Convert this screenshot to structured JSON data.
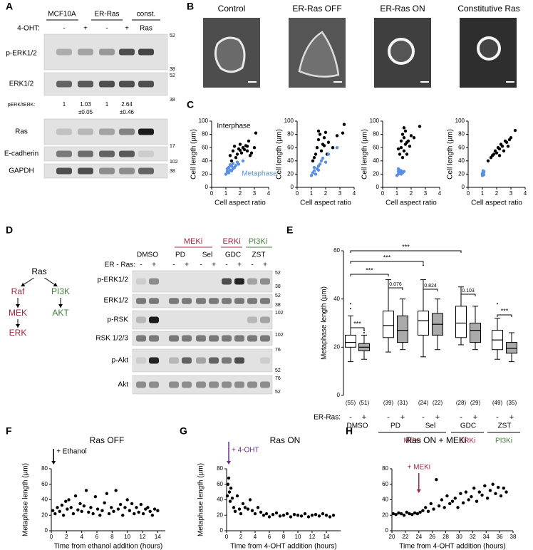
{
  "panel_letters": [
    "A",
    "B",
    "C",
    "D",
    "E",
    "F",
    "G",
    "H"
  ],
  "panel_a": {
    "groups": [
      "MCF10A",
      "ER-Ras",
      "const."
    ],
    "treatment_label": "4-OHT:",
    "lanes": [
      "-",
      "+",
      "-",
      "+",
      "Ras"
    ],
    "rows": [
      "p-ERK1/2",
      "ERK1/2",
      "Ras",
      "E-cadherin",
      "GAPDH"
    ],
    "ratio_label": "pERK/tERK:",
    "ratios": [
      "1",
      "1.03",
      "1",
      "2.64"
    ],
    "ratio_errors": [
      "±0.05",
      "±0.46"
    ],
    "markers": [
      52,
      38,
      52,
      38,
      17,
      102,
      38
    ]
  },
  "panel_b": {
    "titles": [
      "Control",
      "ER-Ras OFF",
      "ER-Ras ON",
      "Constitutive Ras"
    ]
  },
  "panel_d": {
    "pathway": [
      {
        "label": "Ras",
        "color": "#000000"
      },
      {
        "label": "Raf",
        "color": "#a3243b"
      },
      {
        "label": "PI3K",
        "color": "#3f7f3a"
      },
      {
        "label": "MEK",
        "color": "#a3243b"
      },
      {
        "label": "AKT",
        "color": "#3f7f3a"
      },
      {
        "label": "ERK",
        "color": "#a3243b"
      }
    ],
    "classes": [
      {
        "name": "MEKi",
        "color": "#a3243b"
      },
      {
        "name": "ERKi",
        "color": "#a3243b"
      },
      {
        "name": "PI3Ki",
        "color": "#3f7f3a"
      }
    ],
    "drugs": [
      "DMSO",
      "PD",
      "Sel",
      "GDC",
      "ZST"
    ],
    "row_label": "ER - Ras:",
    "lanes": [
      "-",
      "+",
      "-",
      "+",
      "-",
      "+",
      "-",
      "+",
      "-",
      "+"
    ],
    "rows": [
      "p-ERK1/2",
      "ERK1/2",
      "p-RSK",
      "RSK 1/2/3",
      "p-Akt",
      "Akt"
    ],
    "markers": [
      52,
      38,
      52,
      38,
      102,
      102,
      76,
      52,
      76,
      52
    ]
  },
  "chart_data": [
    {
      "type": "scatter",
      "xlabel": "Cell aspect ratio",
      "ylabel": "Cell length (µm)",
      "xlim": [
        0,
        4
      ],
      "xticks": [
        0,
        1,
        2,
        3,
        4
      ],
      "ylim": [
        0,
        100
      ],
      "yticks": [
        0,
        20,
        40,
        60,
        80,
        100
      ],
      "series": [
        {
          "color": "#000000",
          "x": [
            1.3,
            1.5,
            1.6,
            1.8,
            1.9,
            2.0,
            2.1,
            2.2,
            2.3,
            2.4,
            2.5,
            2.6,
            2.7,
            2.8,
            3.0,
            3.1,
            1.4,
            1.7,
            2.0,
            2.5
          ],
          "values": [
            48,
            55,
            62,
            50,
            58,
            65,
            52,
            60,
            57,
            63,
            55,
            70,
            48,
            52,
            60,
            82,
            40,
            45,
            56,
            62
          ]
        },
        {
          "color": "#5a8fe6",
          "x": [
            1.0,
            1.1,
            1.1,
            1.2,
            1.2,
            1.3,
            1.3,
            1.4,
            1.4,
            1.5,
            1.5,
            1.6,
            1.7,
            1.8,
            1.9,
            2.2
          ],
          "values": [
            20,
            24,
            28,
            22,
            30,
            26,
            34,
            25,
            32,
            28,
            36,
            30,
            33,
            38,
            35,
            40
          ]
        }
      ],
      "annotations": [
        {
          "text": "Interphase",
          "color": "#000000"
        },
        {
          "text": "Metaphase",
          "color": "#5a8fe6"
        }
      ]
    },
    {
      "type": "scatter",
      "xlabel": "Cell aspect ratio",
      "ylabel": "Cell length (µm)",
      "xlim": [
        0,
        4
      ],
      "xticks": [
        0,
        1,
        2,
        3,
        4
      ],
      "ylim": [
        0,
        100
      ],
      "yticks": [
        0,
        20,
        40,
        60,
        80,
        100
      ],
      "series": [
        {
          "color": "#000000",
          "x": [
            1.1,
            1.3,
            1.4,
            1.5,
            1.6,
            1.7,
            1.8,
            1.9,
            2.0,
            2.1,
            2.2,
            2.5,
            2.8,
            3.2,
            3.3,
            1.2,
            1.5,
            1.9
          ],
          "values": [
            40,
            50,
            60,
            72,
            80,
            55,
            65,
            75,
            83,
            50,
            68,
            60,
            78,
            82,
            95,
            45,
            85,
            63
          ]
        },
        {
          "color": "#5a8fe6",
          "x": [
            1.0,
            1.1,
            1.2,
            1.2,
            1.3,
            1.4,
            1.5,
            1.5,
            1.6,
            1.7,
            1.8,
            2.0,
            2.2,
            2.8
          ],
          "values": [
            18,
            22,
            25,
            30,
            20,
            28,
            32,
            26,
            35,
            40,
            44,
            38,
            50,
            60
          ]
        }
      ]
    },
    {
      "type": "scatter",
      "xlabel": "Cell aspect ratio",
      "ylabel": "Cell length (µm)",
      "xlim": [
        0,
        4
      ],
      "xticks": [
        0,
        1,
        2,
        3,
        4
      ],
      "ylim": [
        0,
        100
      ],
      "yticks": [
        0,
        20,
        40,
        60,
        80,
        100
      ],
      "series": [
        {
          "color": "#000000",
          "x": [
            1.2,
            1.3,
            1.3,
            1.4,
            1.4,
            1.5,
            1.5,
            1.6,
            1.6,
            1.7,
            1.8,
            1.9,
            2.0,
            2.2,
            1.1,
            1.5,
            1.7,
            2.6
          ],
          "values": [
            50,
            60,
            70,
            45,
            80,
            55,
            75,
            65,
            85,
            50,
            70,
            62,
            78,
            75,
            58,
            90,
            68,
            92
          ]
        },
        {
          "color": "#5a8fe6",
          "x": [
            1.0,
            1.1,
            1.1,
            1.2,
            1.2,
            1.3,
            1.3,
            1.4,
            1.5,
            1.1
          ],
          "values": [
            18,
            20,
            24,
            22,
            26,
            20,
            25,
            22,
            24,
            28
          ]
        }
      ]
    },
    {
      "type": "scatter",
      "xlabel": "Cell aspect ratio",
      "ylabel": "Cell length (µm)",
      "xlim": [
        0,
        4
      ],
      "xticks": [
        0,
        1,
        2,
        3,
        4
      ],
      "ylim": [
        0,
        100
      ],
      "yticks": [
        0,
        20,
        40,
        60,
        80,
        100
      ],
      "series": [
        {
          "color": "#000000",
          "x": [
            1.4,
            1.6,
            1.8,
            1.9,
            2.0,
            2.1,
            2.2,
            2.3,
            2.4,
            2.5,
            2.6,
            2.7,
            2.9,
            3.0,
            3.3,
            1.7,
            2.2,
            2.8
          ],
          "values": [
            40,
            45,
            50,
            55,
            52,
            60,
            58,
            65,
            62,
            55,
            70,
            68,
            72,
            75,
            86,
            48,
            48,
            62
          ]
        },
        {
          "color": "#5a8fe6",
          "x": [
            1.0,
            1.0,
            1.05,
            1.1,
            1.1,
            1.05,
            1.0,
            1.1
          ],
          "values": [
            18,
            20,
            22,
            19,
            24,
            25,
            21,
            23
          ]
        }
      ]
    },
    {
      "type": "box",
      "ylabel": "Metaphase length (µm)",
      "ylim": [
        0,
        60
      ],
      "yticks": [
        0,
        20,
        40,
        60
      ],
      "row_label": "ER-Ras:",
      "categories": [
        "-",
        "+",
        "-",
        "+",
        "-",
        "+",
        "-",
        "+",
        "-",
        "+"
      ],
      "groups": [
        "DMSO",
        "PD",
        "Sel",
        "GDC",
        "ZST"
      ],
      "classes": [
        {
          "name": "MEKi",
          "color": "#a3243b",
          "groups": [
            1,
            2
          ]
        },
        {
          "name": "ERKi",
          "color": "#a3243b",
          "groups": [
            3
          ]
        },
        {
          "name": "PI3Ki",
          "color": "#3f7f3a",
          "groups": [
            4
          ]
        }
      ],
      "min": [
        14,
        15,
        18,
        19,
        16,
        19,
        21,
        19,
        15,
        14
      ],
      "q1": [
        20,
        18.5,
        24,
        22,
        25,
        25,
        24,
        22,
        19,
        17.5
      ],
      "median": [
        22,
        20,
        29,
        27,
        31,
        29.5,
        30,
        27,
        23,
        19.5
      ],
      "q3": [
        25,
        21.5,
        35,
        33,
        35,
        34,
        37,
        30,
        27,
        22
      ],
      "max": [
        33,
        25,
        48,
        40,
        48,
        40,
        45,
        37,
        32,
        26
      ],
      "fills": [
        "#ffffff",
        "#aaaaaa",
        "#ffffff",
        "#aaaaaa",
        "#ffffff",
        "#aaaaaa",
        "#ffffff",
        "#aaaaaa",
        "#ffffff",
        "#aaaaaa"
      ],
      "outlier_index": [
        0,
        0,
        1,
        1,
        4,
        8
      ],
      "outliers": [
        36,
        38,
        26,
        27,
        54,
        38
      ],
      "n_labels": [
        "(55)",
        "(51)",
        "(39)",
        "(31)",
        "(24)",
        "(22)",
        "(28)",
        "(29)",
        "(49)",
        "(35)"
      ],
      "brackets": [
        {
          "from": 0,
          "to": 1,
          "label": "***"
        },
        {
          "from": 0,
          "to": 2,
          "label": "***"
        },
        {
          "from": 0,
          "to": 4,
          "label": "***"
        },
        {
          "from": 0,
          "to": 6,
          "label": "***"
        },
        {
          "from": 2,
          "to": 3,
          "label": "0.076"
        },
        {
          "from": 4,
          "to": 5,
          "label": "0.824"
        },
        {
          "from": 6,
          "to": 7,
          "label": "0.103"
        },
        {
          "from": 8,
          "to": 9,
          "label": "***"
        }
      ]
    },
    {
      "type": "scatter",
      "title": "Ras OFF",
      "xlabel": "Time from ethanol addition (hours)",
      "ylabel": "Metaphase length (µm)",
      "xlim": [
        0,
        15
      ],
      "xticks": [
        0,
        2,
        4,
        6,
        8,
        10,
        12,
        14
      ],
      "ylim": [
        0,
        80
      ],
      "yticks": [
        0,
        20,
        40,
        60,
        80
      ],
      "series": [
        {
          "color": "#000000",
          "x": [
            0.2,
            0.5,
            0.8,
            1.1,
            1.4,
            1.6,
            1.9,
            2.1,
            2.3,
            2.6,
            2.9,
            3.2,
            3.5,
            3.8,
            4.0,
            4.3,
            4.6,
            4.9,
            5.2,
            5.5,
            5.8,
            6.1,
            6.4,
            6.7,
            7.0,
            7.3,
            7.6,
            7.9,
            8.2,
            8.5,
            8.8,
            9.1,
            9.4,
            9.7,
            10.0,
            10.3,
            10.6,
            10.9,
            11.2,
            11.5,
            11.8,
            12.1,
            12.4,
            12.7,
            13.0,
            13.3,
            13.6,
            14.0
          ],
          "values": [
            26,
            22,
            30,
            25,
            33,
            20,
            38,
            28,
            40,
            30,
            22,
            45,
            27,
            35,
            25,
            32,
            52,
            24,
            30,
            22,
            44,
            28,
            20,
            26,
            36,
            48,
            22,
            30,
            25,
            52,
            28,
            34,
            20,
            30,
            40,
            26,
            35,
            22,
            30,
            24,
            34,
            22,
            28,
            30,
            25,
            20,
            28,
            26
          ]
        }
      ],
      "annotations": [
        {
          "text": "+ Ethanol",
          "x": 0.3,
          "color": "#000000"
        }
      ]
    },
    {
      "type": "scatter",
      "title": "Ras ON",
      "xlabel": "Time from 4-OHT addition (hours)",
      "ylabel": "Metaphase length (µm)",
      "xlim": [
        0,
        16
      ],
      "xticks": [
        0,
        2,
        4,
        6,
        8,
        10,
        12,
        14
      ],
      "ylim": [
        0,
        80
      ],
      "yticks": [
        0,
        20,
        40,
        60,
        80
      ],
      "series": [
        {
          "color": "#000000",
          "x": [
            0.1,
            0.2,
            0.3,
            0.4,
            0.5,
            0.6,
            0.8,
            1.0,
            1.2,
            1.5,
            1.8,
            2.0,
            2.3,
            2.6,
            3.0,
            3.3,
            3.6,
            4.0,
            4.4,
            4.8,
            5.2,
            5.6,
            6.0,
            6.5,
            7.0,
            7.5,
            8.0,
            8.5,
            9.0,
            9.5,
            10.0,
            10.5,
            11.0,
            11.5,
            12.0,
            12.5,
            13.0,
            13.5,
            14.0,
            14.5,
            15.0
          ],
          "values": [
            45,
            60,
            68,
            50,
            38,
            55,
            42,
            30,
            25,
            45,
            28,
            22,
            35,
            30,
            28,
            40,
            26,
            22,
            30,
            24,
            20,
            22,
            18,
            21,
            23,
            19,
            20,
            22,
            18,
            21,
            20,
            19,
            22,
            18,
            20,
            21,
            19,
            22,
            20,
            18,
            20
          ]
        }
      ],
      "annotations": [
        {
          "text": "+ 4-OHT",
          "x": 0.3,
          "color": "#6a2c91"
        }
      ]
    },
    {
      "type": "scatter",
      "title": "Ras ON + MEKi",
      "xlabel": "Time from 4-OHT addition (hours)",
      "xlim": [
        20,
        38
      ],
      "xticks": [
        20,
        22,
        24,
        26,
        28,
        30,
        32,
        34,
        36,
        38
      ],
      "ylim": [
        0,
        80
      ],
      "yticks": [
        0,
        20,
        40,
        60,
        80
      ],
      "series": [
        {
          "color": "#000000",
          "x": [
            20.2,
            20.6,
            21.0,
            21.4,
            21.8,
            22.2,
            22.6,
            23.0,
            23.4,
            23.8,
            24.2,
            24.6,
            25.0,
            25.4,
            25.8,
            26.2,
            26.6,
            27.0,
            27.4,
            27.8,
            28.2,
            28.6,
            29.0,
            29.4,
            29.8,
            30.2,
            30.6,
            31.0,
            31.4,
            31.8,
            32.2,
            32.6,
            33.0,
            33.4,
            33.8,
            34.2,
            34.6,
            35.0,
            35.4,
            35.8,
            36.2,
            36.6,
            37.0
          ],
          "values": [
            22,
            21,
            23,
            22,
            20,
            24,
            22,
            21,
            23,
            22,
            24,
            26,
            30,
            25,
            35,
            28,
            66,
            32,
            40,
            30,
            45,
            35,
            38,
            42,
            30,
            48,
            36,
            50,
            40,
            44,
            55,
            38,
            50,
            46,
            58,
            42,
            52,
            60,
            48,
            56,
            45,
            55,
            50
          ]
        }
      ],
      "annotations": [
        {
          "text": "+ MEKi",
          "x": 24,
          "color": "#a3243b"
        }
      ]
    }
  ]
}
